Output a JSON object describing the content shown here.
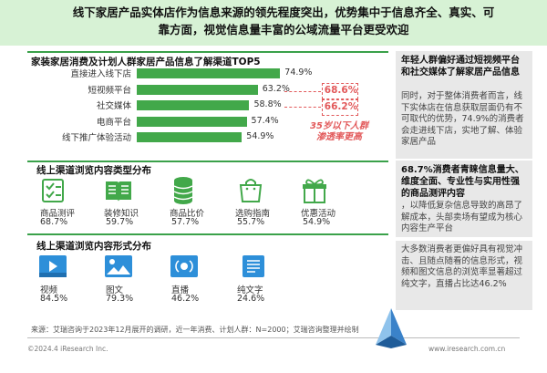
{
  "header": {
    "line1": "线下家居产品实体店作为信息来源的领先程度突出，优势集中于信息齐全、真实、可",
    "line2": "靠方面，视觉信息量丰富的公域流量平台更受欢迎"
  },
  "chart_data": [
    {
      "type": "bar",
      "title": "家装家居消费及计划人群家居产品信息了解渠道TOP5",
      "categories": [
        "直接进入线下店",
        "短视频平台",
        "社交媒体",
        "电商平台",
        "线下推广体验活动"
      ],
      "values": [
        74.9,
        63.2,
        58.8,
        57.4,
        54.9
      ],
      "value_labels": [
        "74.9%",
        "63.2%",
        "58.8%",
        "57.4%",
        "54.9%"
      ],
      "highlights": [
        {
          "category": "短视频平台",
          "label": "68.6%"
        },
        {
          "category": "社交媒体",
          "label": "66.2%"
        }
      ],
      "highlight_note": "35岁以下人群渗透率更高",
      "xlim": [
        0,
        100
      ],
      "bar_color": "#42a84a"
    },
    {
      "type": "table",
      "title": "线上渠道浏览内容类型分布",
      "items": [
        {
          "label": "商品测评",
          "value": "68.7%",
          "icon": "checklist-icon"
        },
        {
          "label": "装修知识",
          "value": "59.7%",
          "icon": "open-book-icon"
        },
        {
          "label": "商品比价",
          "value": "57.7%",
          "icon": "coins-icon"
        },
        {
          "label": "选购指南",
          "value": "55.7%",
          "icon": "shopping-bag-icon"
        },
        {
          "label": "优惠活动",
          "value": "54.9%",
          "icon": "gift-icon"
        }
      ]
    },
    {
      "type": "table",
      "title": "线上渠道浏览内容形式分布",
      "items": [
        {
          "label": "视频",
          "value": "84.5%",
          "icon": "video-icon"
        },
        {
          "label": "图文",
          "value": "79.3%",
          "icon": "image-text-icon"
        },
        {
          "label": "直播",
          "value": "46.2%",
          "icon": "live-stream-icon"
        },
        {
          "label": "纯文字",
          "value": "24.6%",
          "icon": "text-document-icon"
        }
      ]
    }
  ],
  "side": [
    {
      "head": "年轻人群偏好通过短视频平台和社交媒体了解家居产品信息",
      "body": "同时，对于整体消费者而言，线下实体店在信息获取层面仍有不可取代的优势，74.9%的消费者会走进线下店，实地了解、体验家居产品"
    },
    {
      "head": "68.7%消费者青睐信息量大、维度全面、专业性与实用性强的商品测评内容",
      "body": "，以降低复杂信息导致的高昂了解成本，头部卖场有望成为核心内容生产平台"
    },
    {
      "head": "",
      "body": "大多数消费者更偏好具有视觉冲击、且随点随看的信息形式，视频和图文信息的浏览率显著超过纯文字，直播占比达46.2%"
    }
  ],
  "footer": {
    "source": "来源：艾瑞咨询于2023年12月展开的调研，近一年消费、计划人群：N=2000；艾瑞咨询整理并绘制",
    "copyright": "©2024.4 iResearch Inc.",
    "site": "www.iresearch.com.cn"
  },
  "colors": {
    "accent": "#3aa14a",
    "highlight": "#e2595a",
    "header_bg": "#d7f2d5",
    "side_bg": "#e8e8e8"
  }
}
